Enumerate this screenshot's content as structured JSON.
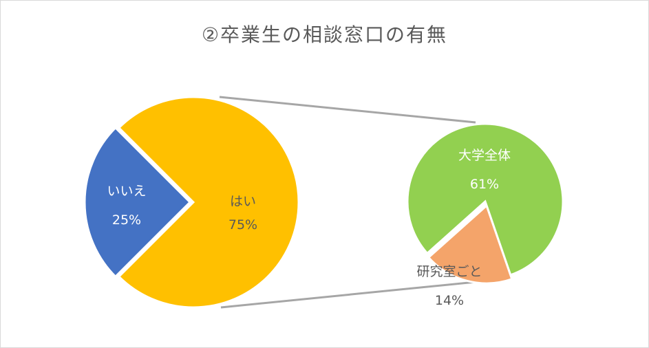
{
  "chart_data": {
    "type": "pie-of-pie",
    "title": "②卒業生の相談窓口の有無",
    "main_pie": [
      {
        "label": "いいえ",
        "value": 25,
        "value_label": "25%",
        "color": "#4472C4"
      },
      {
        "label": "はい",
        "value": 75,
        "value_label": "75%",
        "color": "#FFC000"
      }
    ],
    "secondary_pie": [
      {
        "label": "大学全体",
        "value": 61,
        "value_label": "61%",
        "color": "#92D050"
      },
      {
        "label": "研究室ごと",
        "value": 14,
        "value_label": "14%",
        "color": "#F4A46A"
      }
    ],
    "legend": "none"
  }
}
